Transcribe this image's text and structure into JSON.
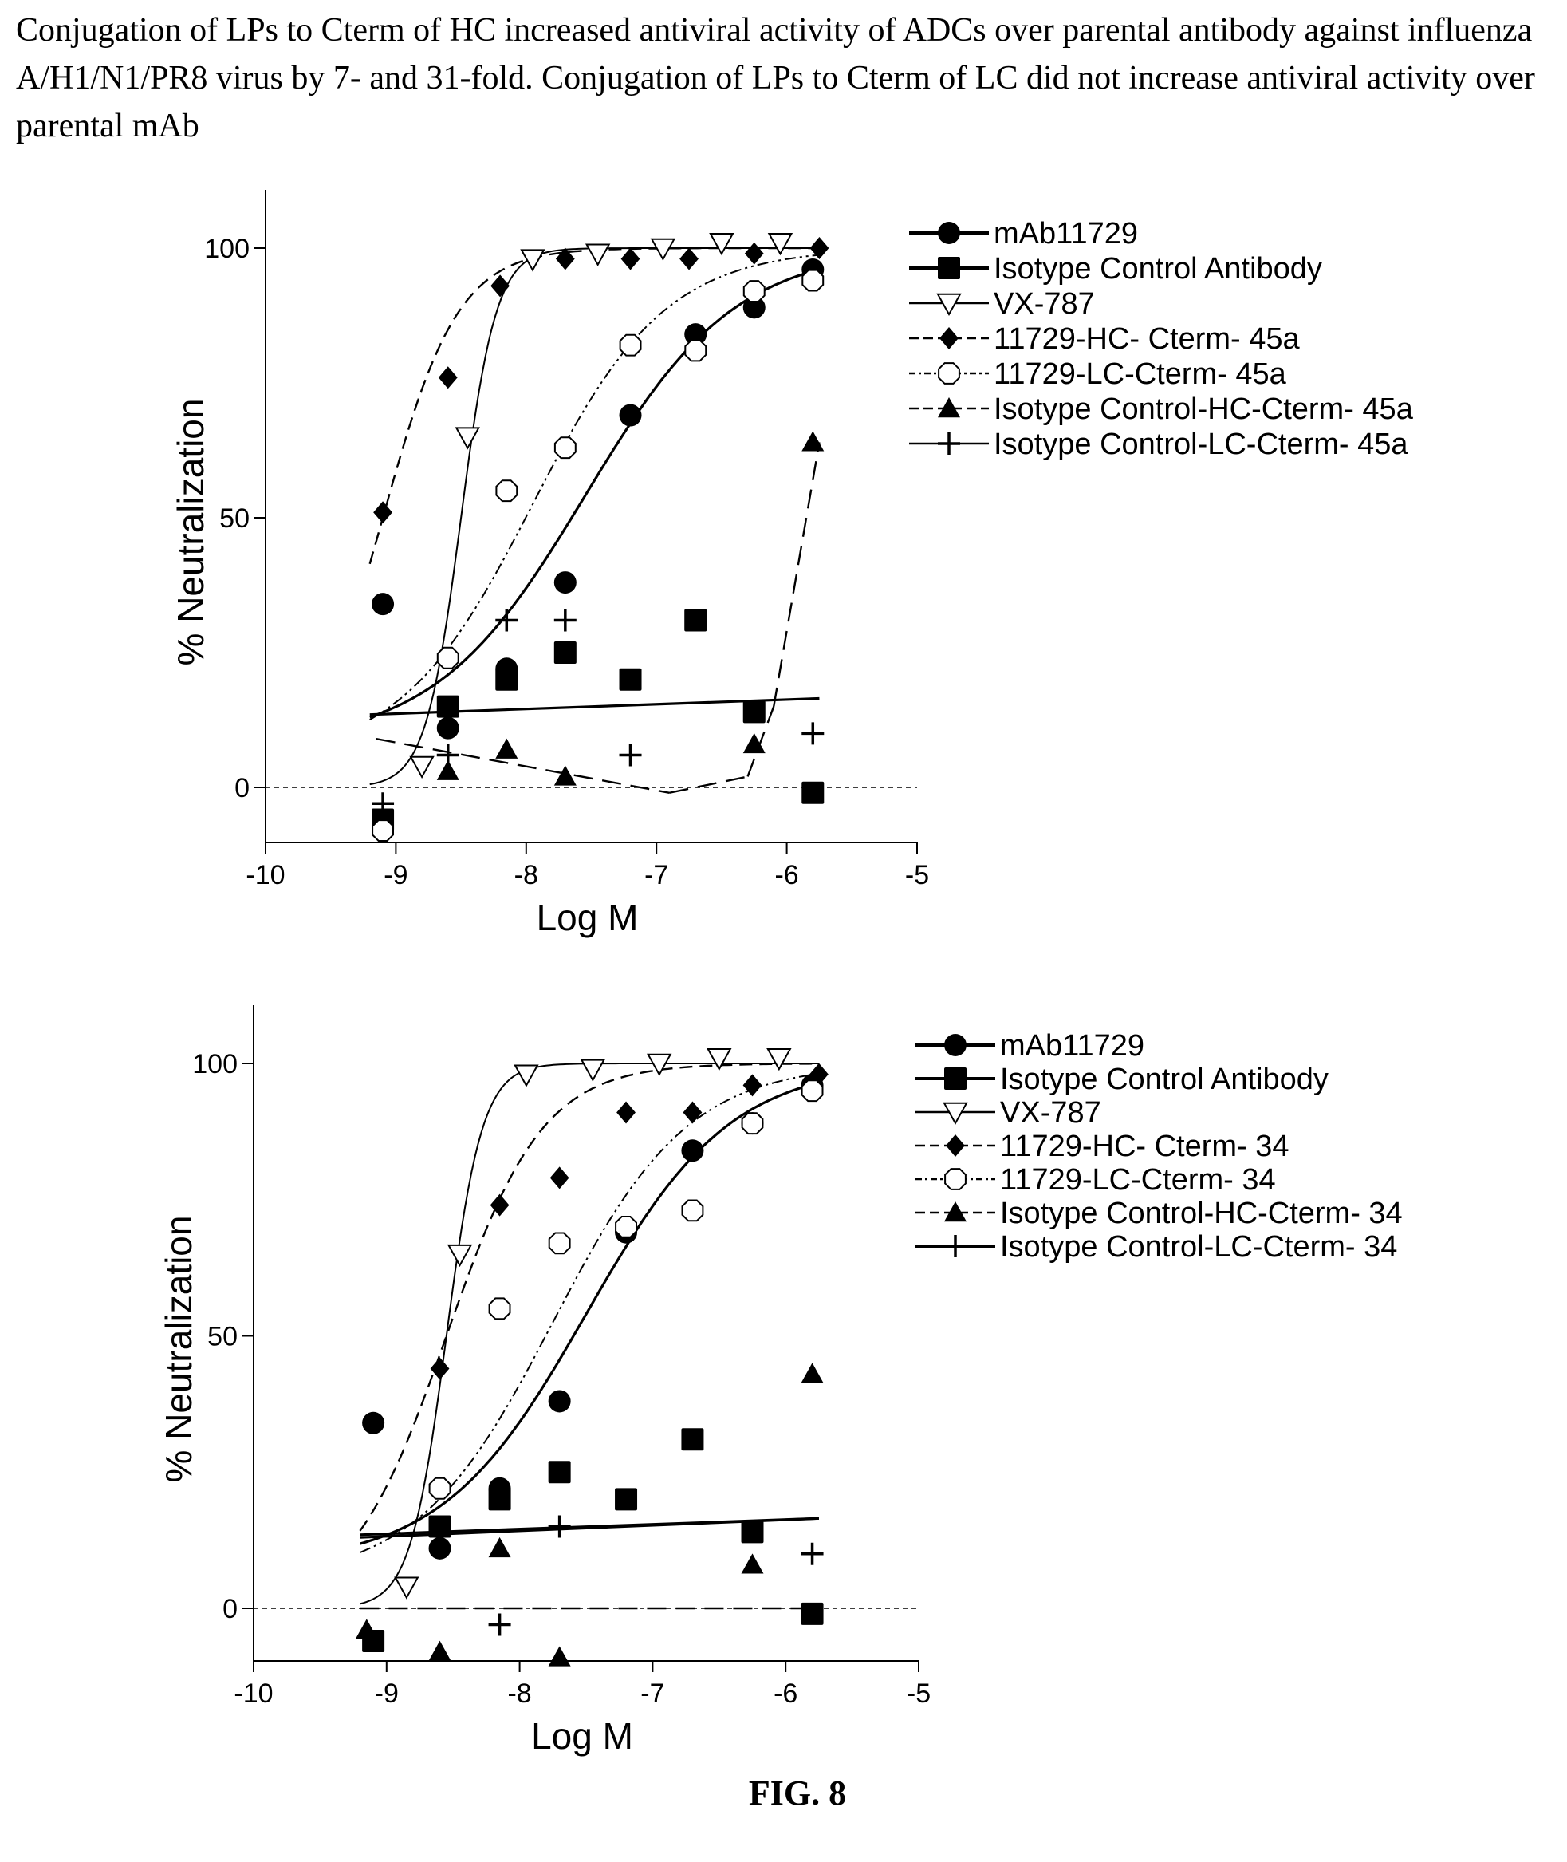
{
  "caption": "Conjugation of LPs to Cterm of HC increased antiviral activity of ADCs over parental antibody against influenza A/H1/N1/PR8 virus by 7- and 31-fold. Conjugation of LPs to Cterm of LC did not increase antiviral activity over parental mAb",
  "figure_label": "FIG. 8",
  "chart_data": [
    {
      "type": "scatter",
      "xlabel": "Log M",
      "ylabel": "% Neutralization",
      "xlim": [
        -10,
        -5
      ],
      "ylim": [
        -10,
        110
      ],
      "xticks": [
        "-10",
        "-9",
        "-8",
        "-7",
        "-6",
        "-5"
      ],
      "yticks": [
        "0",
        "50",
        "100"
      ],
      "zero_reference_line": true,
      "legend_position": "right",
      "series": [
        {
          "name": "mAb11729",
          "marker": "circle-filled",
          "line": "solid",
          "x": [
            -9.1,
            -8.6,
            -8.15,
            -7.7,
            -7.2,
            -6.7,
            -6.25,
            -5.8
          ],
          "y": [
            34,
            11,
            22,
            38,
            69,
            84,
            89,
            96
          ],
          "fit": {
            "bottom": 8,
            "top": 100,
            "logEC50": -7.55,
            "hill": 0.75
          }
        },
        {
          "name": "Isotype Control Antibody",
          "marker": "square-filled",
          "line": "solid",
          "x": [
            -9.1,
            -8.6,
            -8.15,
            -7.7,
            -7.2,
            -6.7,
            -6.25,
            -5.8
          ],
          "y": [
            -6,
            15,
            20,
            25,
            20,
            31,
            14,
            -1
          ],
          "fit": {
            "linear_start": 13.5,
            "linear_end": 16.5
          }
        },
        {
          "name": "VX-787",
          "marker": "triangle-down-open",
          "line": "solid-thin",
          "x": [
            -8.8,
            -8.45,
            -7.95,
            -7.45,
            -6.95,
            -6.5,
            -6.05
          ],
          "y": [
            4,
            65,
            98,
            99,
            100,
            101,
            101
          ],
          "fit": {
            "bottom": 0,
            "top": 100,
            "logEC50": -8.5,
            "hill": 3.2
          }
        },
        {
          "name": "11729-HC- Cterm-  45a",
          "marker": "diamond-filled",
          "line": "dashed",
          "x": [
            -9.1,
            -8.6,
            -8.2,
            -7.7,
            -7.2,
            -6.75,
            -6.25,
            -5.75
          ],
          "y": [
            51,
            76,
            93,
            98,
            98,
            98,
            99,
            100
          ],
          "fit": {
            "bottom": 0,
            "top": 100,
            "logEC50": -9.1,
            "hill": 1.5
          }
        },
        {
          "name": "11729-LC-Cterm-  45a",
          "marker": "circle-open",
          "line": "dash-dot-dot",
          "x": [
            -9.1,
            -8.6,
            -8.15,
            -7.7,
            -7.2,
            -6.7,
            -6.25,
            -5.8
          ],
          "y": [
            -8,
            24,
            55,
            63,
            82,
            81,
            92,
            94
          ],
          "fit": {
            "bottom": 5,
            "top": 100,
            "logEC50": -7.95,
            "hill": 0.85
          }
        },
        {
          "name": "Isotype Control-HC-Cterm-  45a",
          "marker": "triangle-up-filled",
          "line": "long-dash",
          "x": [
            -8.6,
            -8.15,
            -7.7,
            -6.25,
            -5.8
          ],
          "y": [
            3,
            7,
            2,
            8,
            64
          ],
          "fit": {
            "segments": [
              [
                -9.15,
                9,
                -6.9,
                -1
              ],
              [
                -6.9,
                -1,
                -6.3,
                2
              ],
              [
                -6.3,
                2,
                -6.1,
                15
              ],
              [
                -6.1,
                15,
                -5.75,
                64
              ]
            ]
          }
        },
        {
          "name": "Isotype Control-LC-Cterm-  45a",
          "marker": "plus",
          "line": "none",
          "x": [
            -9.1,
            -8.6,
            -8.15,
            -7.7,
            -7.2,
            -5.8
          ],
          "y": [
            -3,
            6,
            31,
            31,
            6,
            10
          ]
        }
      ]
    },
    {
      "type": "scatter",
      "xlabel": "Log M",
      "ylabel": "% Neutralization",
      "xlim": [
        -10,
        -5
      ],
      "ylim": [
        -10,
        110
      ],
      "xticks": [
        "-10",
        "-9",
        "-8",
        "-7",
        "-6",
        "-5"
      ],
      "yticks": [
        "0",
        "50",
        "100"
      ],
      "zero_reference_line": true,
      "legend_position": "right",
      "series": [
        {
          "name": "mAb11729",
          "marker": "circle-filled",
          "line": "solid",
          "x": [
            -9.1,
            -8.6,
            -8.15,
            -7.7,
            -7.2,
            -6.7,
            -6.25,
            -5.8
          ],
          "y": [
            34,
            11,
            22,
            38,
            69,
            84,
            89,
            96
          ],
          "fit": {
            "bottom": 8,
            "top": 100,
            "logEC50": -7.5,
            "hill": 0.8
          }
        },
        {
          "name": "Isotype Control Antibody",
          "marker": "square-filled",
          "line": "solid",
          "x": [
            -9.1,
            -8.6,
            -8.15,
            -7.7,
            -7.2,
            -6.7,
            -6.25,
            -5.8
          ],
          "y": [
            -6,
            15,
            20,
            25,
            20,
            31,
            14,
            -1
          ],
          "fit": {
            "linear_start": 13.5,
            "linear_end": 16.5
          }
        },
        {
          "name": "VX-787",
          "marker": "triangle-down-open",
          "line": "solid-thin",
          "x": [
            -8.85,
            -8.45,
            -7.95,
            -7.45,
            -6.95,
            -6.5,
            -6.05
          ],
          "y": [
            4,
            65,
            98,
            99,
            100,
            101,
            101
          ],
          "fit": {
            "bottom": 0,
            "top": 100,
            "logEC50": -8.55,
            "hill": 3.2
          }
        },
        {
          "name": "11729-HC- Cterm-  34",
          "marker": "diamond-filled",
          "line": "dashed",
          "x": [
            -8.6,
            -8.15,
            -7.7,
            -7.2,
            -6.7,
            -6.25,
            -5.75
          ],
          "y": [
            44,
            74,
            79,
            91,
            91,
            96,
            98
          ],
          "fit": {
            "bottom": 0,
            "top": 100,
            "logEC50": -8.55,
            "hill": 1.2
          }
        },
        {
          "name": "11729-LC-Cterm-  34",
          "marker": "circle-open",
          "line": "dash-dot-dot",
          "x": [
            -8.6,
            -8.15,
            -7.7,
            -7.2,
            -6.7,
            -6.25,
            -5.8
          ],
          "y": [
            22,
            55,
            67,
            70,
            73,
            89,
            95
          ],
          "fit": {
            "bottom": 5,
            "top": 100,
            "logEC50": -7.75,
            "hill": 0.85
          }
        },
        {
          "name": "Isotype Control-HC-Cterm-  34",
          "marker": "triangle-up-filled",
          "line": "long-dash",
          "x": [
            -9.15,
            -8.6,
            -8.15,
            -7.7,
            -6.25,
            -5.8
          ],
          "y": [
            -4,
            -8,
            11,
            -9,
            8,
            43
          ],
          "fit": {
            "linear_start": 0,
            "linear_end": 0
          }
        },
        {
          "name": "Isotype Control-LC-Cterm-  34",
          "marker": "plus",
          "line": "solid",
          "x": [
            -8.15,
            -7.7,
            -5.8
          ],
          "y": [
            -3,
            15,
            10
          ],
          "fit": {
            "linear_start": 13,
            "linear_end": 16.5
          }
        }
      ]
    }
  ]
}
